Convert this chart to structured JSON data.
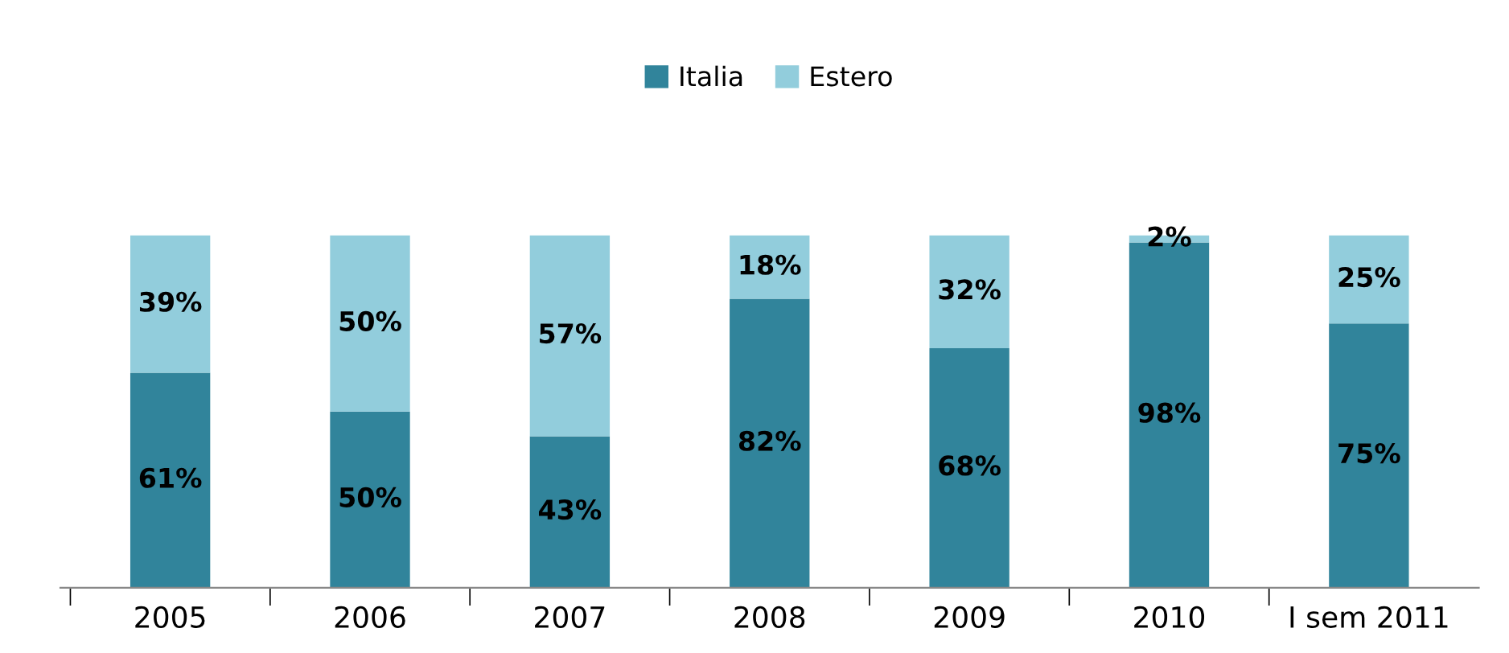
{
  "chart_data": {
    "type": "bar",
    "stacked": true,
    "categories": [
      "2005",
      "2006",
      "2007",
      "2008",
      "2009",
      "2010",
      "I sem 2011"
    ],
    "series": [
      {
        "name": "Italia",
        "color": "#31849b",
        "values": [
          61,
          50,
          43,
          82,
          68,
          98,
          75
        ],
        "value_labels": [
          "61%",
          "50%",
          "43%",
          "82%",
          "68%",
          "98%",
          "75%"
        ]
      },
      {
        "name": "Estero",
        "color": "#92cddc",
        "values": [
          39,
          50,
          57,
          18,
          32,
          2,
          25
        ],
        "value_labels": [
          "39%",
          "50%",
          "57%",
          "18%",
          "32%",
          "2%",
          "25%"
        ]
      }
    ],
    "legend": "top",
    "grid": false
  }
}
